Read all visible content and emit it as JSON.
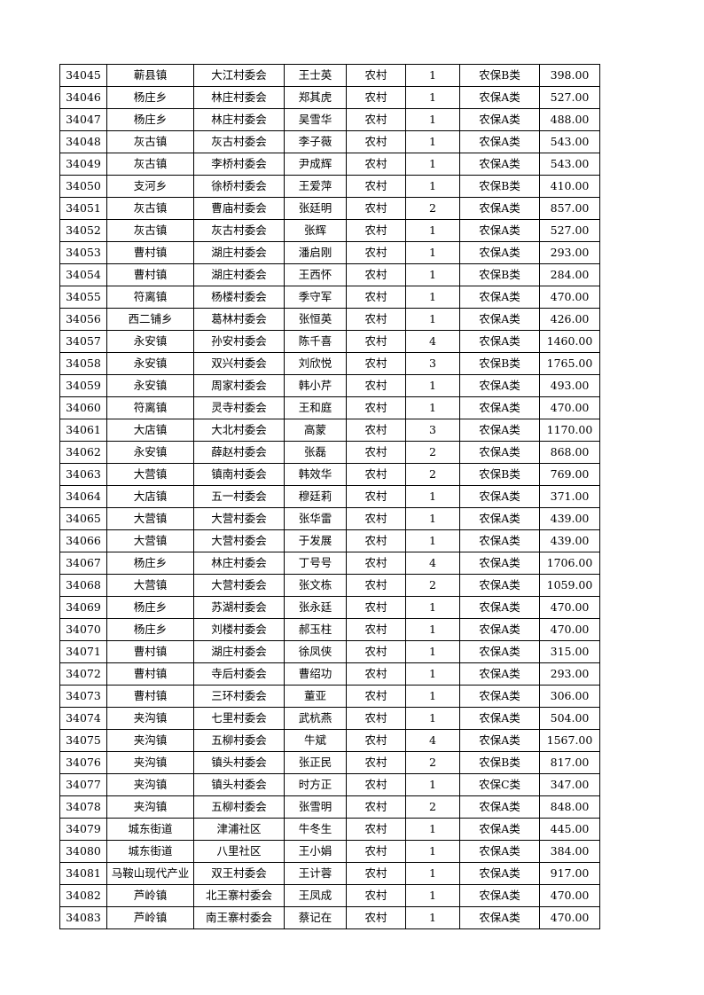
{
  "table": {
    "rows": [
      [
        "34045",
        "蕲县镇",
        "大江村委会",
        "王士英",
        "农村",
        "1",
        "农保B类",
        "398.00"
      ],
      [
        "34046",
        "杨庄乡",
        "林庄村委会",
        "郑其虎",
        "农村",
        "1",
        "农保A类",
        "527.00"
      ],
      [
        "34047",
        "杨庄乡",
        "林庄村委会",
        "吴雪华",
        "农村",
        "1",
        "农保A类",
        "488.00"
      ],
      [
        "34048",
        "灰古镇",
        "灰古村委会",
        "李子薇",
        "农村",
        "1",
        "农保A类",
        "543.00"
      ],
      [
        "34049",
        "灰古镇",
        "李桥村委会",
        "尹成辉",
        "农村",
        "1",
        "农保A类",
        "543.00"
      ],
      [
        "34050",
        "支河乡",
        "徐桥村委会",
        "王爱萍",
        "农村",
        "1",
        "农保B类",
        "410.00"
      ],
      [
        "34051",
        "灰古镇",
        "曹庙村委会",
        "张廷明",
        "农村",
        "2",
        "农保A类",
        "857.00"
      ],
      [
        "34052",
        "灰古镇",
        "灰古村委会",
        "张辉",
        "农村",
        "1",
        "农保A类",
        "527.00"
      ],
      [
        "34053",
        "曹村镇",
        "湖庄村委会",
        "潘启刚",
        "农村",
        "1",
        "农保A类",
        "293.00"
      ],
      [
        "34054",
        "曹村镇",
        "湖庄村委会",
        "王西怀",
        "农村",
        "1",
        "农保B类",
        "284.00"
      ],
      [
        "34055",
        "符离镇",
        "杨楼村委会",
        "季守军",
        "农村",
        "1",
        "农保A类",
        "470.00"
      ],
      [
        "34056",
        "西二铺乡",
        "葛林村委会",
        "张恒英",
        "农村",
        "1",
        "农保A类",
        "426.00"
      ],
      [
        "34057",
        "永安镇",
        "孙安村委会",
        "陈千喜",
        "农村",
        "4",
        "农保A类",
        "1460.00"
      ],
      [
        "34058",
        "永安镇",
        "双兴村委会",
        "刘欣悦",
        "农村",
        "3",
        "农保B类",
        "1765.00"
      ],
      [
        "34059",
        "永安镇",
        "周家村委会",
        "韩小芹",
        "农村",
        "1",
        "农保A类",
        "493.00"
      ],
      [
        "34060",
        "符离镇",
        "灵寺村委会",
        "王和庭",
        "农村",
        "1",
        "农保A类",
        "470.00"
      ],
      [
        "34061",
        "大店镇",
        "大北村委会",
        "高蒙",
        "农村",
        "3",
        "农保A类",
        "1170.00"
      ],
      [
        "34062",
        "永安镇",
        "薛赵村委会",
        "张磊",
        "农村",
        "2",
        "农保A类",
        "868.00"
      ],
      [
        "34063",
        "大营镇",
        "镇南村委会",
        "韩效华",
        "农村",
        "2",
        "农保B类",
        "769.00"
      ],
      [
        "34064",
        "大店镇",
        "五一村委会",
        "穆廷莉",
        "农村",
        "1",
        "农保A类",
        "371.00"
      ],
      [
        "34065",
        "大营镇",
        "大营村委会",
        "张华雷",
        "农村",
        "1",
        "农保A类",
        "439.00"
      ],
      [
        "34066",
        "大营镇",
        "大营村委会",
        "于发展",
        "农村",
        "1",
        "农保A类",
        "439.00"
      ],
      [
        "34067",
        "杨庄乡",
        "林庄村委会",
        "丁号号",
        "农村",
        "4",
        "农保A类",
        "1706.00"
      ],
      [
        "34068",
        "大营镇",
        "大营村委会",
        "张文栋",
        "农村",
        "2",
        "农保A类",
        "1059.00"
      ],
      [
        "34069",
        "杨庄乡",
        "苏湖村委会",
        "张永廷",
        "农村",
        "1",
        "农保A类",
        "470.00"
      ],
      [
        "34070",
        "杨庄乡",
        "刘楼村委会",
        "郝玉柱",
        "农村",
        "1",
        "农保A类",
        "470.00"
      ],
      [
        "34071",
        "曹村镇",
        "湖庄村委会",
        "徐凤侠",
        "农村",
        "1",
        "农保A类",
        "315.00"
      ],
      [
        "34072",
        "曹村镇",
        "寺后村委会",
        "曹绍功",
        "农村",
        "1",
        "农保A类",
        "293.00"
      ],
      [
        "34073",
        "曹村镇",
        "三环村委会",
        "董亚",
        "农村",
        "1",
        "农保A类",
        "306.00"
      ],
      [
        "34074",
        "夹沟镇",
        "七里村委会",
        "武杭燕",
        "农村",
        "1",
        "农保A类",
        "504.00"
      ],
      [
        "34075",
        "夹沟镇",
        "五柳村委会",
        "牛斌",
        "农村",
        "4",
        "农保A类",
        "1567.00"
      ],
      [
        "34076",
        "夹沟镇",
        "镇头村委会",
        "张正民",
        "农村",
        "2",
        "农保B类",
        "817.00"
      ],
      [
        "34077",
        "夹沟镇",
        "镇头村委会",
        "时方正",
        "农村",
        "1",
        "农保C类",
        "347.00"
      ],
      [
        "34078",
        "夹沟镇",
        "五柳村委会",
        "张雪明",
        "农村",
        "2",
        "农保A类",
        "848.00"
      ],
      [
        "34079",
        "城东街道",
        "津浦社区",
        "牛冬生",
        "农村",
        "1",
        "农保A类",
        "445.00"
      ],
      [
        "34080",
        "城东街道",
        "八里社区",
        "王小娟",
        "农村",
        "1",
        "农保A类",
        "384.00"
      ],
      [
        "34081",
        "马鞍山现代产业",
        "双王村委会",
        "王计蓉",
        "农村",
        "1",
        "农保A类",
        "917.00"
      ],
      [
        "34082",
        "芦岭镇",
        "北王寨村委会",
        "王凤成",
        "农村",
        "1",
        "农保A类",
        "470.00"
      ],
      [
        "34083",
        "芦岭镇",
        "南王寨村委会",
        "蔡记在",
        "农村",
        "1",
        "农保A类",
        "470.00"
      ]
    ]
  }
}
